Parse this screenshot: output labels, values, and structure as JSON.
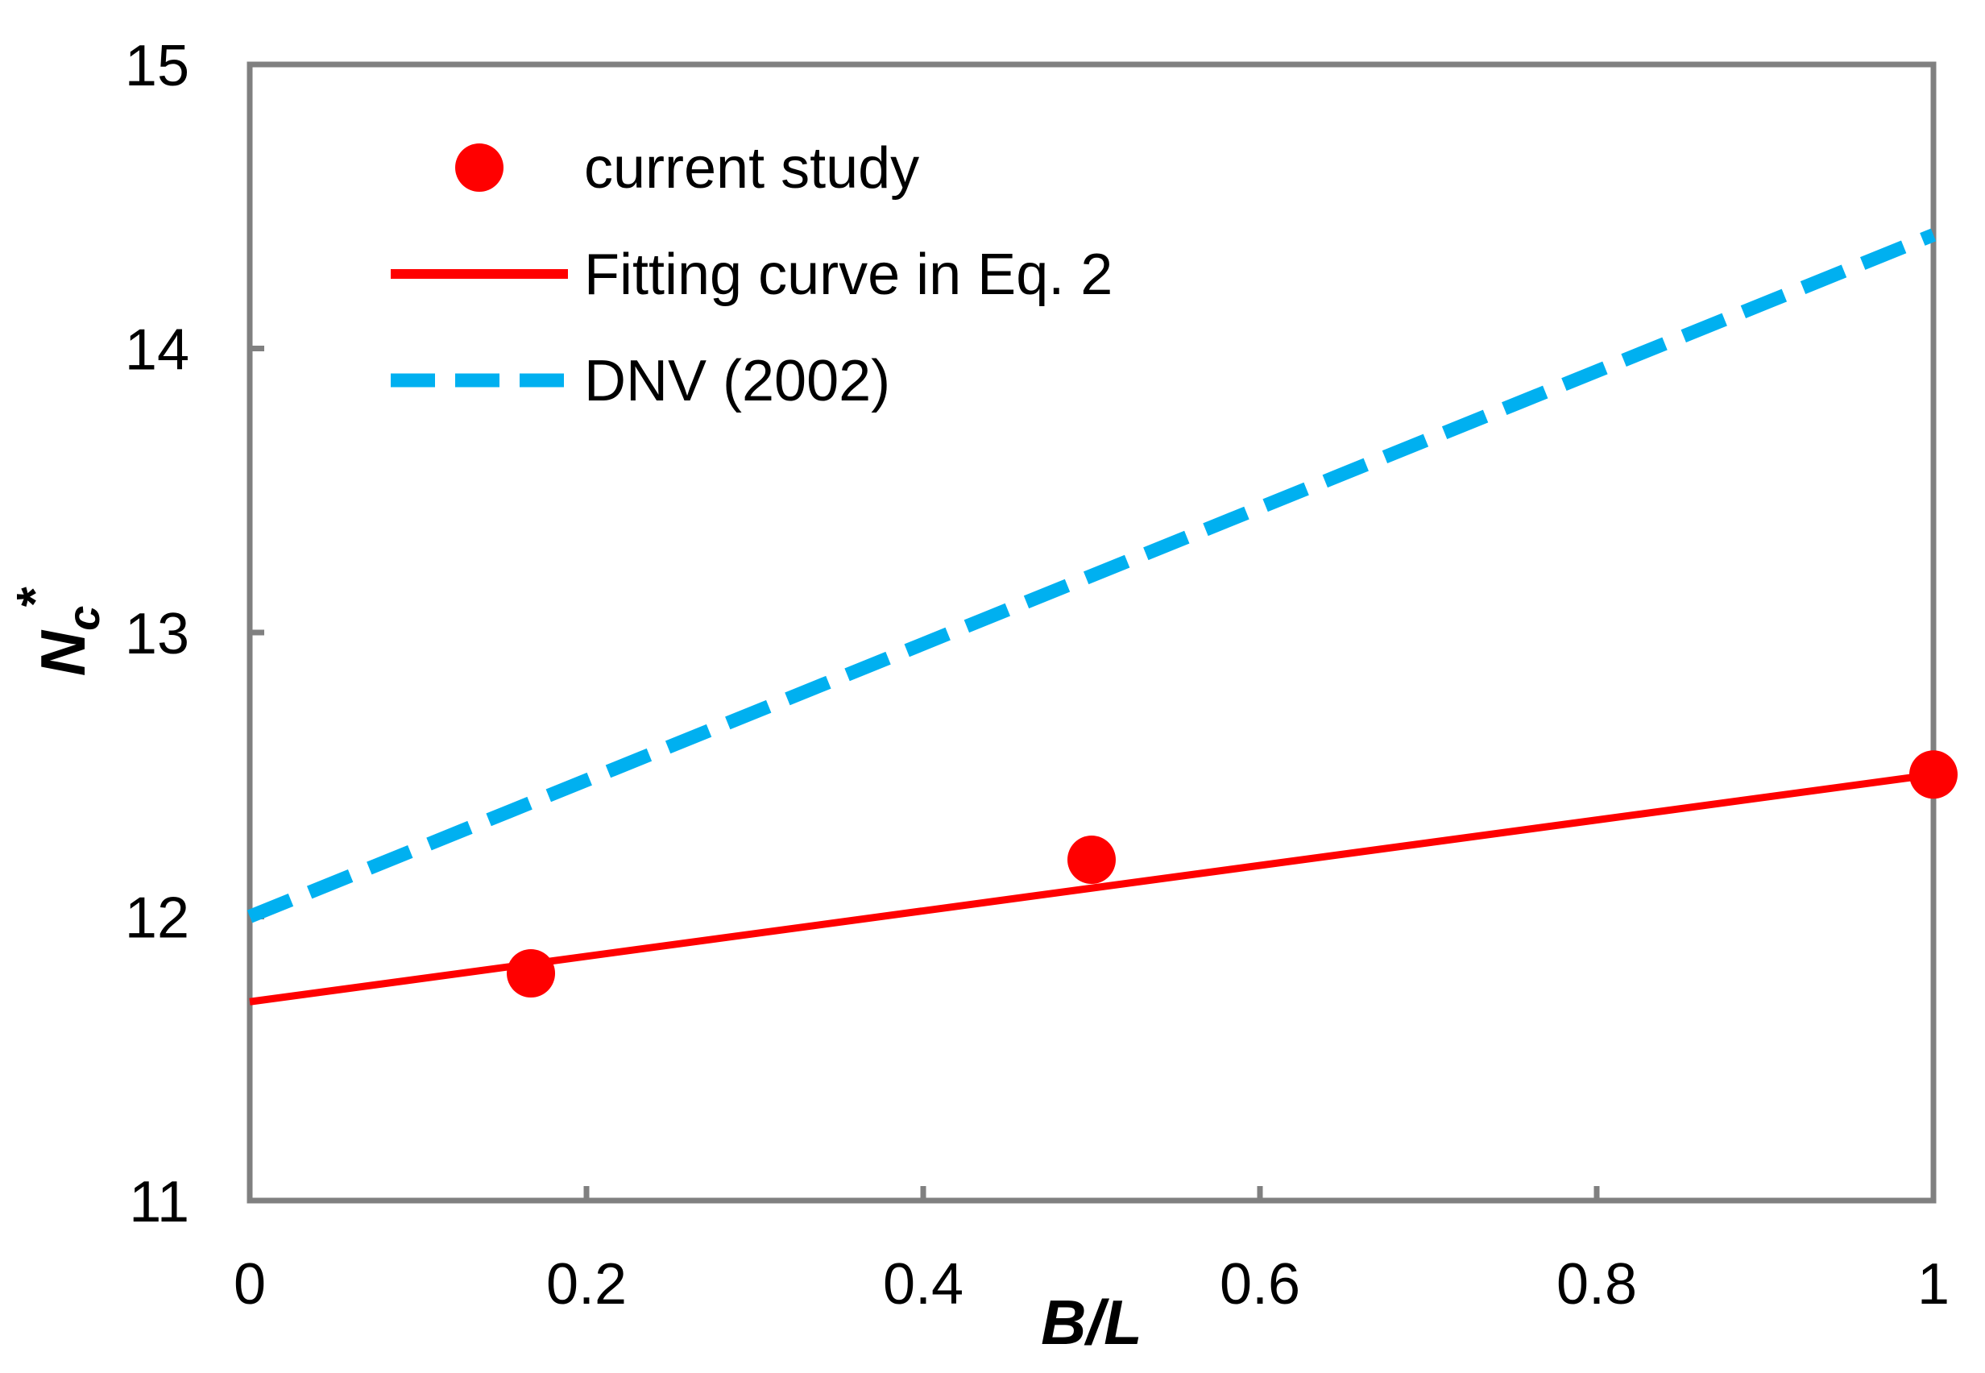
{
  "colors": {
    "axis": "#808080",
    "current_study": "#ff0000",
    "fit": "#ff0000",
    "dnv": "#00b0f0"
  },
  "chart_data": {
    "type": "scatter",
    "title": "",
    "xlabel": "B/L",
    "ylabel": {
      "base": "N",
      "subscript": "c",
      "superscript": "*"
    },
    "xlim": [
      0,
      1
    ],
    "ylim": [
      11,
      15
    ],
    "xticks": [
      0,
      0.2,
      0.4,
      0.6,
      0.8,
      1
    ],
    "xtick_labels": [
      "0",
      "0.2",
      "0.4",
      "0.6",
      "0.8",
      "1"
    ],
    "yticks": [
      11,
      12,
      13,
      14,
      15
    ],
    "ytick_labels": [
      "11",
      "12",
      "13",
      "14",
      "15"
    ],
    "grid": false,
    "legend_position": "top-left",
    "series": [
      {
        "name": "current study",
        "kind": "markers",
        "x": [
          0.167,
          0.5,
          1.0
        ],
        "y": [
          11.8,
          12.2,
          12.5
        ]
      },
      {
        "name": "Fitting curve in Eq. 2",
        "kind": "solid-line",
        "x": [
          0,
          1
        ],
        "y": [
          11.7,
          12.5
        ]
      },
      {
        "name": "DNV (2002)",
        "kind": "dashed-line",
        "x": [
          0,
          1
        ],
        "y": [
          12.0,
          14.4
        ]
      }
    ]
  }
}
